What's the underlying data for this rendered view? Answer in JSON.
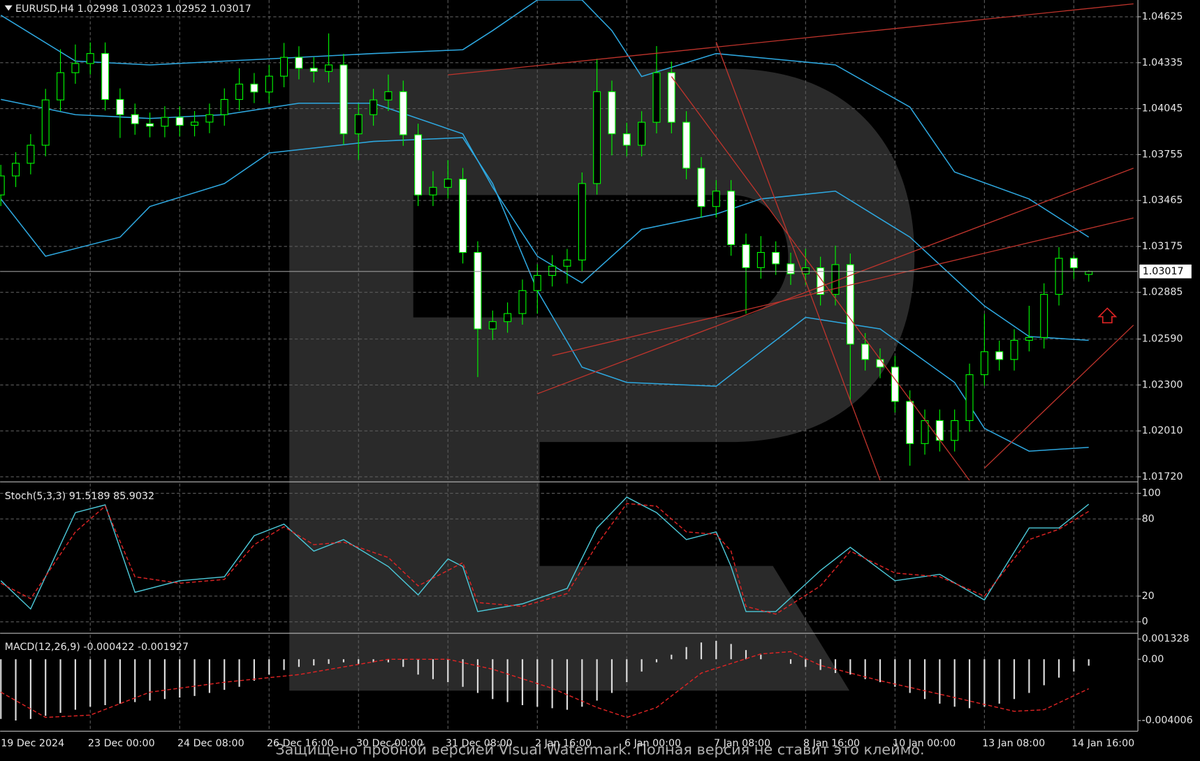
{
  "chart_data": [
    {
      "type": "candlestick",
      "symbol": "EURUSD,H4",
      "open": [
        1.035,
        1.0362,
        1.037,
        1.03814,
        1.041,
        1.04272,
        1.0433,
        1.04393,
        1.04103,
        1.04007,
        1.0395,
        1.03934,
        1.0399,
        1.0394,
        1.0396,
        1.04007,
        1.04103,
        1.042,
        1.0415,
        1.0425,
        1.04369,
        1.043,
        1.0428,
        1.04321,
        1.03886,
        1.04007,
        1.041,
        1.04152,
        1.0388,
        1.035,
        1.03548,
        1.036,
        1.03137,
        1.02654,
        1.027,
        1.02751,
        1.02896,
        1.02992,
        1.0305,
        1.03089,
        1.03572,
        1.04152,
        1.03886,
        1.03814,
        1.03959,
        1.04272,
        1.03959,
        1.03669,
        1.03427,
        1.03524,
        1.03186,
        1.03041,
        1.03137,
        1.03065,
        1.03002,
        1.0304,
        1.02872,
        1.0306,
        1.02558,
        1.02461,
        1.02413,
        1.02196,
        1.0193,
        1.02075,
        1.0195,
        1.02075,
        1.02365,
        1.0251,
        1.02461,
        1.02582,
        1.026,
        1.02872,
        1.031,
        1.02998
      ],
      "high": [
        1.0369,
        1.0377,
        1.03884,
        1.0417,
        1.0442,
        1.0445,
        1.04463,
        1.04463,
        1.04173,
        1.04077,
        1.0402,
        1.0406,
        1.0406,
        1.0403,
        1.04077,
        1.04173,
        1.043,
        1.0427,
        1.0432,
        1.0446,
        1.04439,
        1.0437,
        1.0452,
        1.04391,
        1.04077,
        1.0417,
        1.0426,
        1.04222,
        1.0395,
        1.0365,
        1.0372,
        1.0367,
        1.03207,
        1.0277,
        1.02821,
        1.02966,
        1.03062,
        1.0312,
        1.03159,
        1.03642,
        1.0436,
        1.04222,
        1.03956,
        1.04029,
        1.0444,
        1.04342,
        1.04029,
        1.03739,
        1.03594,
        1.03594,
        1.03256,
        1.0324,
        1.03207,
        1.03135,
        1.0316,
        1.0311,
        1.0318,
        1.0313,
        1.02628,
        1.02531,
        1.02483,
        1.02266,
        1.02145,
        1.02145,
        1.02145,
        1.02435,
        1.0275,
        1.0258,
        1.02652,
        1.028,
        1.02942,
        1.0317,
        1.0312,
        1.03023
      ],
      "low": [
        1.0343,
        1.0355,
        1.0363,
        1.03744,
        1.0403,
        1.04202,
        1.0426,
        1.04033,
        1.0386,
        1.0388,
        1.03864,
        1.03864,
        1.0387,
        1.0387,
        1.0389,
        1.03937,
        1.04033,
        1.0408,
        1.0408,
        1.0418,
        1.0423,
        1.0421,
        1.0421,
        1.03816,
        1.0372,
        1.03937,
        1.0403,
        1.0381,
        1.0343,
        1.0343,
        1.03478,
        1.03067,
        1.0235,
        1.02584,
        1.0263,
        1.02681,
        1.0275,
        1.02922,
        1.0294,
        1.03019,
        1.03502,
        1.0375,
        1.03744,
        1.03744,
        1.03889,
        1.03889,
        1.03599,
        1.03357,
        1.03357,
        1.03116,
        1.0275,
        1.02971,
        1.02995,
        1.02932,
        1.02932,
        1.02802,
        1.02802,
        1.022,
        1.02391,
        1.02343,
        1.02126,
        1.0179,
        1.0186,
        1.0188,
        1.0188,
        1.02005,
        1.02295,
        1.02391,
        1.02391,
        1.02512,
        1.0253,
        1.02802,
        1.0297,
        1.02952
      ],
      "close": [
        1.0362,
        1.037,
        1.03814,
        1.041,
        1.04272,
        1.0433,
        1.04393,
        1.04103,
        1.04007,
        1.0395,
        1.03934,
        1.0399,
        1.0394,
        1.0396,
        1.04007,
        1.04103,
        1.042,
        1.0415,
        1.0425,
        1.04369,
        1.043,
        1.0428,
        1.04321,
        1.03886,
        1.04007,
        1.041,
        1.04152,
        1.0388,
        1.035,
        1.03548,
        1.036,
        1.03137,
        1.02654,
        1.027,
        1.02751,
        1.02896,
        1.02992,
        1.0305,
        1.03089,
        1.03572,
        1.04152,
        1.03886,
        1.03814,
        1.03959,
        1.04272,
        1.03959,
        1.03669,
        1.03427,
        1.03524,
        1.03186,
        1.03041,
        1.03137,
        1.03065,
        1.03002,
        1.0304,
        1.02872,
        1.0306,
        1.02558,
        1.02461,
        1.02413,
        1.02196,
        1.0193,
        1.02075,
        1.0195,
        1.02075,
        1.02365,
        1.0251,
        1.02461,
        1.02582,
        1.026,
        1.02872,
        1.031,
        1.0304,
        1.03017
      ],
      "bull_color": "#000000",
      "bear_color": "#ffffff",
      "wick_color": "#00ff00",
      "bands": [
        {
          "color": "#2ea8e0",
          "x": [
            0,
            5,
            10,
            15,
            20,
            25,
            31,
            33,
            36,
            39,
            41,
            43,
            48,
            56,
            61,
            64,
            69,
            73
          ],
          "values": [
            1.04635,
            1.04345,
            1.04321,
            1.04345,
            1.04369,
            1.04393,
            1.04417,
            1.04538,
            1.04731,
            1.04731,
            1.04538,
            1.04248,
            1.04393,
            1.04321,
            1.04055,
            1.03645,
            1.03475,
            1.03234
          ]
        },
        {
          "color": "#2ea8e0",
          "x": [
            0,
            5,
            10,
            15,
            20,
            25,
            31,
            33,
            36,
            39,
            43,
            48,
            51,
            56,
            61,
            66,
            69,
            73
          ],
          "values": [
            1.04103,
            1.04007,
            1.03983,
            1.04007,
            1.04079,
            1.04079,
            1.03886,
            1.03548,
            1.03113,
            1.02944,
            1.03282,
            1.03379,
            1.03475,
            1.03524,
            1.03234,
            1.02799,
            1.02606,
            1.02582
          ]
        },
        {
          "color": "#2ea8e0",
          "x": [
            0,
            3,
            8,
            10,
            15,
            18,
            25,
            31,
            33,
            36,
            39,
            42,
            48,
            54,
            59,
            64,
            66,
            69,
            73
          ],
          "values": [
            1.03475,
            1.03113,
            1.03234,
            1.03427,
            1.03572,
            1.03765,
            1.03838,
            1.03862,
            1.03572,
            1.02896,
            1.02413,
            1.02316,
            1.02292,
            1.02727,
            1.02654,
            1.02316,
            1.02026,
            1.01882,
            1.01906
          ]
        }
      ],
      "trendlines": [
        {
          "color": "#c0342c",
          "x": [
            30,
            76
          ],
          "values": [
            1.04258,
            1.04707
          ]
        },
        {
          "color": "#c0342c",
          "x": [
            48,
            59
          ],
          "values": [
            1.04466,
            1.01698
          ]
        },
        {
          "color": "#c0342c",
          "x": [
            45,
            65
          ],
          "values": [
            1.04248,
            1.01698
          ]
        },
        {
          "color": "#c0342c",
          "x": [
            36,
            76
          ],
          "values": [
            1.02244,
            1.03669
          ]
        },
        {
          "color": "#c0342c",
          "x": [
            37,
            76
          ],
          "values": [
            1.02485,
            1.03355
          ]
        },
        {
          "color": "#c0342c",
          "x": [
            66,
            76
          ],
          "values": [
            1.01775,
            1.02678
          ]
        }
      ],
      "xlim": [
        -0.05,
        76.3
      ],
      "ylim": [
        1.01698,
        1.04731
      ],
      "yticks": [
        1.04625,
        1.04335,
        1.04045,
        1.03755,
        1.03465,
        1.03175,
        1.02885,
        {
          "value": 1.0259,
          "label": "1.02590"
        },
        {
          "value": 1.023,
          "label": "1.02300"
        },
        {
          "value": 1.0201,
          "label": "1.02010"
        },
        {
          "value": 1.0172,
          "label": "1.01720"
        }
      ],
      "xticks": [
        {
          "value": 0,
          "label": "19 Dec 2024"
        },
        {
          "value": 6,
          "label": "23 Dec 00:00"
        },
        {
          "value": 12,
          "label": "24 Dec 08:00"
        },
        {
          "value": 18,
          "label": "26 Dec 16:00"
        },
        {
          "value": 24,
          "label": "30 Dec 00:00"
        },
        {
          "value": 30,
          "label": "31 Dec 08:00"
        },
        {
          "value": 36,
          "label": "2 Jan 16:00"
        },
        {
          "value": 42,
          "label": "6 Jan 00:00"
        },
        {
          "value": 48,
          "label": "7 Jan 08:00"
        },
        {
          "value": 54,
          "label": "8 Jan 16:00"
        },
        {
          "value": 60,
          "label": "10 Jan 00:00"
        },
        {
          "value": 66,
          "label": "13 Jan 08:00"
        },
        {
          "value": 72,
          "label": "14 Jan 16:00"
        }
      ],
      "grid": true
    },
    {
      "type": "stochastic",
      "label": "Stoch(5,3,3)",
      "x": [
        0,
        2,
        5,
        7,
        9,
        12,
        15,
        17,
        19,
        21,
        23,
        26,
        28,
        30,
        31,
        32,
        35,
        38,
        40,
        42,
        44,
        46,
        48,
        49,
        50,
        52,
        55,
        57,
        60,
        63,
        66,
        69,
        71,
        73
      ],
      "series": [
        {
          "color": "#4cc8d8",
          "values": [
            32,
            10,
            85,
            91,
            23,
            32,
            35,
            67,
            76,
            55,
            64,
            43,
            21,
            49,
            43,
            8,
            14,
            26,
            73,
            97,
            85,
            64,
            70,
            43,
            8,
            8,
            40,
            58,
            32,
            37,
            17,
            73,
            73,
            91.5189
          ]
        },
        {
          "color": "#e02424",
          "dashed": true,
          "values": [
            30,
            18,
            70,
            90,
            35,
            30,
            33,
            60,
            74,
            60,
            62,
            50,
            28,
            40,
            46,
            15,
            12,
            22,
            60,
            92,
            90,
            70,
            68,
            55,
            12,
            6,
            28,
            55,
            38,
            35,
            20,
            64,
            72,
            85.9032
          ]
        }
      ],
      "xlim": [
        -0.05,
        76.3
      ],
      "ylim": [
        -7.7,
        107.7
      ],
      "yticks": [
        100,
        80,
        20,
        0
      ],
      "grid": true
    },
    {
      "type": "macd",
      "label": "MACD(12,26,9)",
      "histogram": [
        -0.0039,
        -0.004,
        -0.0039,
        -0.0037,
        -0.0035,
        -0.0033,
        -0.0031,
        -0.003,
        -0.0029,
        -0.0028,
        -0.0027,
        -0.0026,
        -0.0025,
        -0.0024,
        -0.0022,
        -0.002,
        -0.0018,
        -0.0014,
        -0.001,
        -0.0007,
        -0.0005,
        -0.0004,
        -0.0003,
        -0.0002,
        -0.0003,
        -0.0002,
        -0.0002,
        -0.0005,
        -0.001,
        -0.0013,
        -0.0015,
        -0.0018,
        -0.0022,
        -0.0026,
        -0.0028,
        -0.003,
        -0.0031,
        -0.0032,
        -0.0033,
        -0.0031,
        -0.0027,
        -0.0022,
        -0.0015,
        -0.0008,
        -0.0002,
        0.0003,
        0.0008,
        0.0011,
        0.0012,
        0.001,
        0.0006,
        0.0003,
        0,
        -0.0003,
        -0.0005,
        -0.0007,
        -0.0009,
        -0.001,
        -0.0013,
        -0.0015,
        -0.0018,
        -0.0022,
        -0.0026,
        -0.0029,
        -0.0031,
        -0.0032,
        -0.0031,
        -0.0029,
        -0.0026,
        -0.0022,
        -0.0017,
        -0.0012,
        -0.0008,
        -0.000422
      ],
      "histogram_color": "#dcdcdc",
      "signal": {
        "color": "#e02424",
        "x": [
          0,
          3,
          6,
          10,
          15,
          20,
          26,
          30,
          33,
          37,
          40,
          42,
          44,
          47,
          51,
          53,
          55,
          59,
          64,
          68,
          70,
          73
        ],
        "values": [
          -0.00215,
          -0.0038,
          -0.00365,
          -0.00215,
          -0.0015,
          -0.001,
          0,
          0,
          -0.00065,
          -0.0019,
          -0.00315,
          -0.0038,
          -0.00315,
          -0.0009,
          0.00035,
          0.0005,
          -0.0004,
          -0.0014,
          -0.0025,
          -0.0034,
          -0.0033,
          -0.001927
        ]
      },
      "xlim": [
        -0.05,
        76.3
      ],
      "ylim": [
        -0.00465,
        0.0016
      ],
      "yticks": [
        0.001328,
        {
          "value": 0,
          "label": "0.00"
        },
        -0.004006
      ],
      "grid": false
    }
  ],
  "watermark": "Защищено пробной версией Visual Watermark. Полная версия не ставит это клеймо."
}
